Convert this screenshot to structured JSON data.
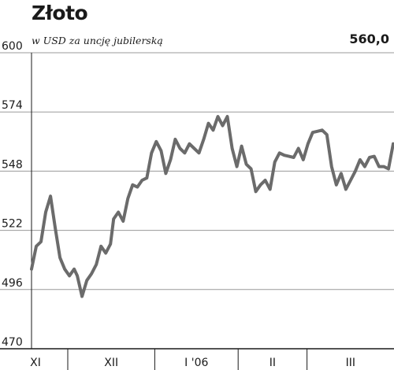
{
  "chart_data": {
    "type": "line",
    "title": "Złoto",
    "subtitle": "w USD za uncję jubilerską",
    "last_value_label": "560,0",
    "ylim": [
      470,
      600
    ],
    "yticks": [
      "600",
      "574",
      "548",
      "522",
      "496",
      "470"
    ],
    "grid": true,
    "line_color": "#6b6b6b",
    "x_categories": [
      {
        "label": "XI",
        "start": 0,
        "end": 10
      },
      {
        "label": "XII",
        "start": 10,
        "end": 34
      },
      {
        "label": "I '06",
        "start": 34,
        "end": 57
      },
      {
        "label": "II",
        "start": 57,
        "end": 76
      },
      {
        "label": "III",
        "start": 76,
        "end": 100
      }
    ],
    "x_max": 100,
    "series": [
      {
        "name": "",
        "points": [
          [
            0,
            505
          ],
          [
            1.5,
            515
          ],
          [
            3,
            517
          ],
          [
            4.5,
            530
          ],
          [
            6,
            537
          ],
          [
            7.5,
            523
          ],
          [
            9,
            510
          ],
          [
            10.5,
            505
          ],
          [
            12,
            502
          ],
          [
            13.5,
            505
          ],
          [
            14.5,
            502
          ],
          [
            16,
            493
          ],
          [
            17.5,
            500
          ],
          [
            19,
            503
          ],
          [
            20.5,
            507
          ],
          [
            22,
            515
          ],
          [
            23.5,
            512
          ],
          [
            25,
            516
          ],
          [
            26,
            527
          ],
          [
            27.5,
            530
          ],
          [
            29,
            526
          ],
          [
            30.5,
            536
          ],
          [
            32,
            542
          ],
          [
            33.5,
            541
          ],
          [
            35,
            544
          ],
          [
            36.5,
            545
          ],
          [
            38,
            556
          ],
          [
            39.5,
            561
          ],
          [
            41,
            557
          ],
          [
            42.5,
            547
          ],
          [
            44,
            553
          ],
          [
            45.5,
            562
          ],
          [
            47,
            558
          ],
          [
            48.5,
            556
          ],
          [
            50,
            560
          ],
          [
            51.5,
            558
          ],
          [
            53,
            556
          ],
          [
            54.5,
            562
          ],
          [
            56,
            569
          ],
          [
            57.5,
            566
          ],
          [
            59,
            572
          ],
          [
            60.5,
            568
          ],
          [
            62,
            572
          ],
          [
            63.5,
            558
          ],
          [
            65,
            550
          ],
          [
            66.5,
            559
          ],
          [
            68,
            551
          ],
          [
            69.5,
            549
          ],
          [
            71,
            539
          ],
          [
            72.5,
            542
          ],
          [
            74,
            544
          ],
          [
            75.5,
            540
          ],
          [
            77,
            552
          ],
          [
            78.5,
            556
          ],
          [
            80,
            555
          ],
          [
            81.5,
            554.5
          ],
          [
            83,
            554
          ],
          [
            84.5,
            558
          ],
          [
            86,
            553
          ],
          [
            87.5,
            560
          ],
          [
            89,
            565
          ],
          [
            90.5,
            565.5
          ],
          [
            92,
            566
          ],
          [
            93.5,
            564
          ],
          [
            95,
            550
          ],
          [
            96.5,
            542
          ],
          [
            98,
            547
          ],
          [
            99.5,
            540
          ],
          [
            101,
            544
          ],
          [
            102.5,
            548
          ],
          [
            104,
            553
          ],
          [
            105.5,
            550
          ],
          [
            107,
            554
          ],
          [
            108.5,
            554.5
          ],
          [
            110,
            550
          ],
          [
            111.5,
            550
          ],
          [
            113,
            549
          ],
          [
            114.5,
            560
          ]
        ]
      }
    ]
  }
}
